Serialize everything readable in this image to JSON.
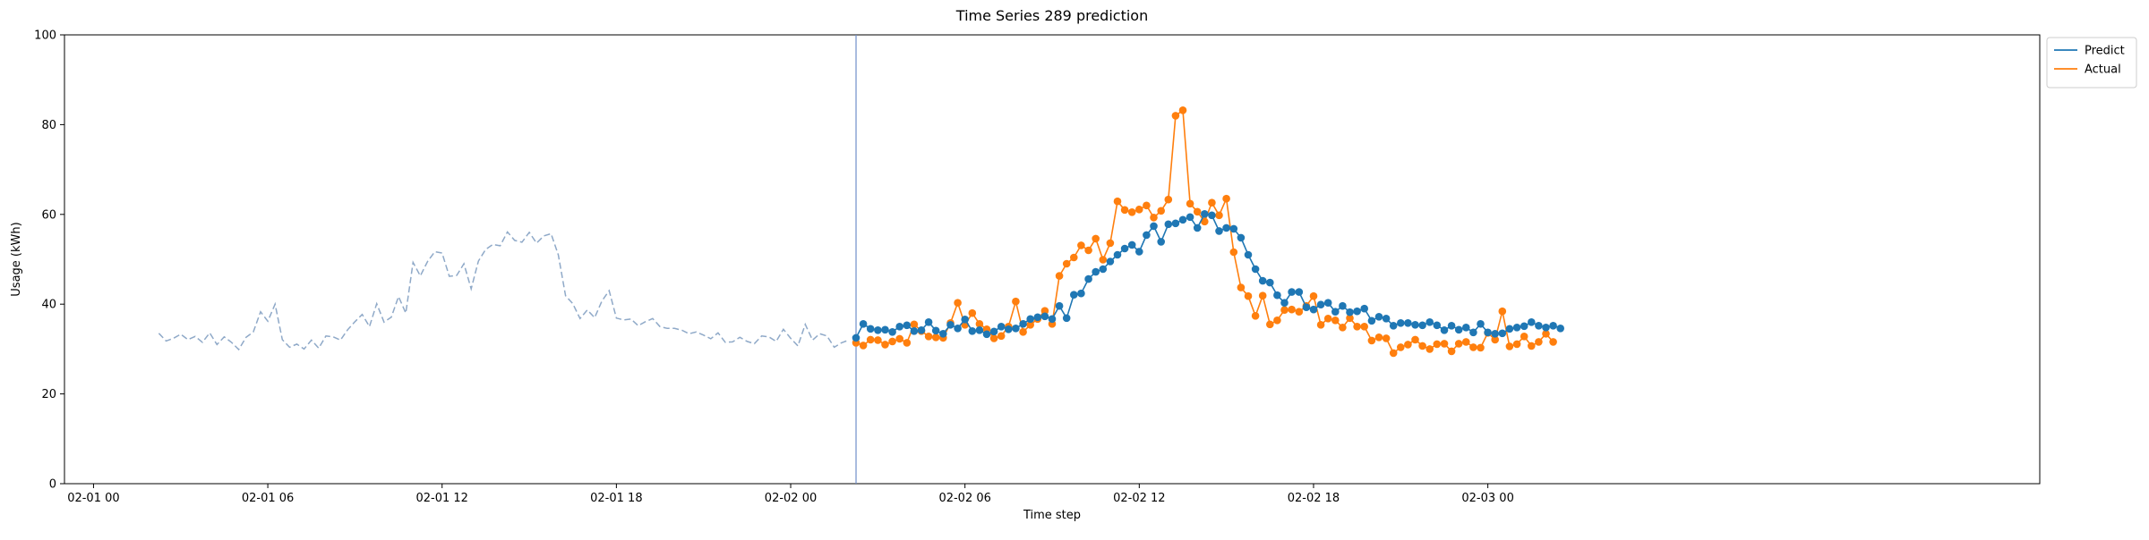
{
  "chart_data": {
    "type": "line",
    "title": "Time Series 289 prediction",
    "xlabel": "Time step",
    "ylabel": "Usage (kWh)",
    "x_start": "2024-02-01T00:00",
    "x_tick_labels": [
      "02-01 00",
      "02-01 06",
      "02-01 12",
      "02-01 18",
      "02-02 00",
      "02-02 06",
      "02-02 12",
      "02-02 18",
      "02-03 00"
    ],
    "ylim": [
      0,
      100
    ],
    "y_ticks": [
      0,
      20,
      40,
      60,
      80,
      100
    ],
    "grid": false,
    "legend_placement": "upper-right-outside",
    "forecast_start": "2024-02-02T02:15",
    "colors": {
      "history": "#8fa9c8",
      "predict": "#1f77b4",
      "actual": "#ff7f0e",
      "divider": "#6f8fc9"
    },
    "series": [
      {
        "name": "",
        "style": "dashed",
        "start": "2024-02-01T02:15",
        "step_minutes": 15,
        "values": [
          33.5,
          31.8,
          32.4,
          33.3,
          32.1,
          32.8,
          31.5,
          33.6,
          31.0,
          32.7,
          31.5,
          29.9,
          32.6,
          33.8,
          38.3,
          36.2,
          40.0,
          32.1,
          30.4,
          31.1,
          30.0,
          32.0,
          30.2,
          32.9,
          32.7,
          32.0,
          34.3,
          36.1,
          37.7,
          35.0,
          40.1,
          36.0,
          37.1,
          41.7,
          38.0,
          49.3,
          46.3,
          49.5,
          51.7,
          51.4,
          46.2,
          46.4,
          49.0,
          43.4,
          49.6,
          52.2,
          53.3,
          53.0,
          56.1,
          54.2,
          53.8,
          56.0,
          53.6,
          55.2,
          55.7,
          51.0,
          41.9,
          40.1,
          36.8,
          38.7,
          37.0,
          40.7,
          43.0,
          36.9,
          36.5,
          36.7,
          35.2,
          36.1,
          36.8,
          35.0,
          34.6,
          34.6,
          34.2,
          33.4,
          33.8,
          33.1,
          32.3,
          33.6,
          31.5,
          31.6,
          32.6,
          31.7,
          31.2,
          32.9,
          32.7,
          31.7,
          34.4,
          32.4,
          30.7,
          35.5,
          32.0,
          33.4,
          32.9,
          30.4,
          31.4,
          32.0
        ]
      },
      {
        "name": "Predict",
        "style": "solid-markers",
        "start": "2024-02-02T02:15",
        "step_minutes": 15,
        "values": [
          32.5,
          35.6,
          34.5,
          34.2,
          34.3,
          33.8,
          35.0,
          35.3,
          34.0,
          34.2,
          36.0,
          34.1,
          33.4,
          35.4,
          34.6,
          36.6,
          34.0,
          34.2,
          33.3,
          33.9,
          35.0,
          34.4,
          34.6,
          35.6,
          36.7,
          37.1,
          37.3,
          36.7,
          39.6,
          36.9,
          42.1,
          42.4,
          45.6,
          47.2,
          47.8,
          49.5,
          51.0,
          52.4,
          53.2,
          51.7,
          55.4,
          57.4,
          53.9,
          57.8,
          58.0,
          58.8,
          59.4,
          57.0,
          60.1,
          59.8,
          56.3,
          57.0,
          56.8,
          54.8,
          51.0,
          47.8,
          45.2,
          44.8,
          42.0,
          40.3,
          42.7,
          42.7,
          39.3,
          38.8,
          39.9,
          40.3,
          38.3,
          39.6,
          38.2,
          38.4,
          39.0,
          36.3,
          37.2,
          36.8,
          35.2,
          35.8,
          35.8,
          35.4,
          35.3,
          36.0,
          35.3,
          34.2,
          35.2,
          34.3,
          34.8,
          33.7,
          35.6,
          33.7,
          33.4,
          33.5,
          34.5,
          34.8,
          35.1,
          36.0,
          35.2,
          34.8,
          35.2,
          34.6
        ]
      },
      {
        "name": "Actual",
        "style": "solid-markers",
        "start": "2024-02-02T02:15",
        "step_minutes": 15,
        "values": [
          31.4,
          30.8,
          32.1,
          32.0,
          31.0,
          31.7,
          32.3,
          31.4,
          35.5,
          34.0,
          32.8,
          32.6,
          32.5,
          35.8,
          40.3,
          35.4,
          38.0,
          35.6,
          34.4,
          32.4,
          32.9,
          35.0,
          40.6,
          33.8,
          35.4,
          36.7,
          38.5,
          35.6,
          46.3,
          49.0,
          50.4,
          53.1,
          52.0,
          54.6,
          49.9,
          53.6,
          62.9,
          61.0,
          60.5,
          61.1,
          62.0,
          59.3,
          60.8,
          63.3,
          82.0,
          83.2,
          62.4,
          60.6,
          58.4,
          62.6,
          59.8,
          63.5,
          51.6,
          43.7,
          41.8,
          37.4,
          41.9,
          35.5,
          36.4,
          38.7,
          38.8,
          38.3,
          39.6,
          41.8,
          35.4,
          36.8,
          36.4,
          34.8,
          36.9,
          35.0,
          35.0,
          31.9,
          32.6,
          32.4,
          29.1,
          30.4,
          31.0,
          32.1,
          30.7,
          30.0,
          31.1,
          31.2,
          29.5,
          31.2,
          31.6,
          30.4,
          30.3,
          33.6,
          32.1,
          38.4,
          30.6,
          31.1,
          32.8,
          30.7,
          31.6,
          33.4,
          31.6
        ]
      }
    ]
  }
}
